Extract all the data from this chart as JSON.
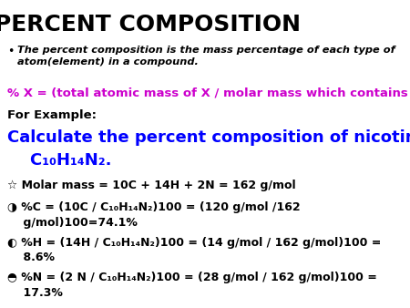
{
  "title": "PERCENT COMPOSITION",
  "bg_color": "#ffffff",
  "title_color": "#000000",
  "title_fontsize": 18,
  "bullet_italic_text": "The percent composition is the mass percentage of each type of\natom(element) in a compound.",
  "formula_line": "% X = (total atomic mass of X / molar mass which contains X)",
  "formula_color": "#cc00cc",
  "for_example": "For Example:",
  "calc_line1": "Calculate the percent composition of nicotine,",
  "calc_line2_parts": [
    {
      "text": "C",
      "style": "normal"
    },
    {
      "text": "10",
      "style": "sub"
    },
    {
      "text": "H",
      "style": "normal"
    },
    {
      "text": "14",
      "style": "sub"
    },
    {
      "text": "N",
      "style": "normal"
    },
    {
      "text": "2",
      "style": "sub"
    },
    {
      "text": ".",
      "style": "normal"
    }
  ],
  "calc_color": "#0000ff",
  "calc_fontsize": 13,
  "lines": [
    "☆ Molar mass = 10C + 14H + 2N = 162 g/mol",
    "◑ %C = (10C / C₁₀H₁₄N₂)100 = (120 g/mol /162\n    g/mol)100=74.1%",
    "◐ %H = (14H / C₁₀H₁₄N₂)100 = (14 g/mol / 162 g/mol)100 =\n    8.6%",
    "◓ %N = (2 N / C₁₀H₁₄N₂)100 = (28 g/mol / 162 g/mol)100 =\n    17.3%"
  ],
  "lines_fontsize": 10.5,
  "lines_color": "#000000"
}
